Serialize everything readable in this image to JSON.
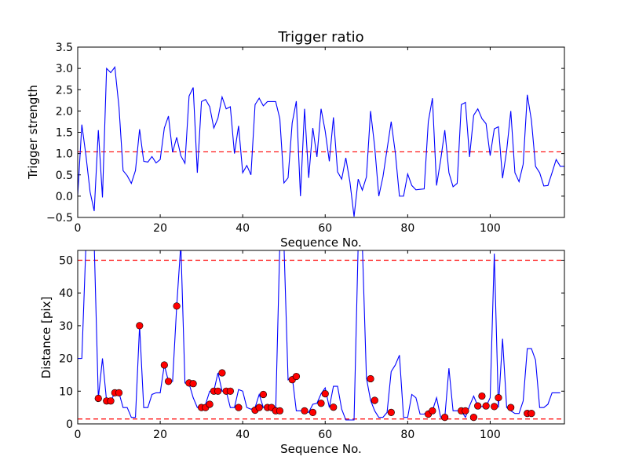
{
  "chart_data": [
    {
      "type": "line",
      "title": "Trigger ratio",
      "xlabel": "Sequence No.",
      "ylabel": "Trigger strength",
      "xlim": [
        0,
        118
      ],
      "ylim": [
        -0.5,
        3.5
      ],
      "xticks": [
        0,
        20,
        40,
        60,
        80,
        100
      ],
      "yticks": [
        -0.5,
        0.0,
        0.5,
        1.0,
        1.5,
        2.0,
        2.5,
        3.0,
        3.5
      ],
      "ytick_labels": [
        "−0.5",
        "0.0",
        "0.5",
        "1.0",
        "1.5",
        "2.0",
        "2.5",
        "3.0",
        "3.5"
      ],
      "grid": false,
      "line_color": "#0000ff",
      "threshold": 1.04,
      "threshold_color": "#ff0000",
      "series": [
        {
          "values": [
            0.02,
            1.68,
            0.95,
            0.1,
            -0.35,
            1.55,
            -0.03,
            3.0,
            2.9,
            3.03,
            2.1,
            0.6,
            0.48,
            0.3,
            0.6,
            1.57,
            0.82,
            0.8,
            0.93,
            0.78,
            0.86,
            1.6,
            1.88,
            1.03,
            1.38,
            0.95,
            0.77,
            2.35,
            2.55,
            0.55,
            2.22,
            2.27,
            2.1,
            1.6,
            1.83,
            2.33,
            2.05,
            2.1,
            1.0,
            1.65,
            0.55,
            0.72,
            0.5,
            2.15,
            2.3,
            2.12,
            2.22,
            2.22,
            2.22,
            1.82,
            0.31,
            0.43,
            1.72,
            2.23,
            0.0,
            2.05,
            0.43,
            1.6,
            0.92,
            2.05,
            1.53,
            0.82,
            1.85,
            0.57,
            0.4,
            0.9,
            0.33,
            -0.48,
            0.4,
            0.14,
            0.45,
            2.0,
            1.16,
            0.0,
            0.45,
            1.1,
            1.75,
            1.02,
            0.0,
            0.0,
            0.52,
            0.25,
            0.15,
            0.16,
            0.17,
            1.75,
            2.3,
            0.25,
            0.85,
            1.55,
            0.55,
            0.22,
            0.3,
            2.15,
            2.2,
            0.92,
            1.9,
            2.05,
            1.82,
            1.7,
            0.95,
            1.58,
            1.63,
            0.42,
            1.07,
            2.0,
            0.55,
            0.34,
            0.75,
            2.38,
            1.78,
            0.7,
            0.55,
            0.24,
            0.25,
            0.55,
            0.86,
            0.7,
            0.7
          ]
        }
      ]
    },
    {
      "type": "line",
      "title": "",
      "xlabel": "Sequence No.",
      "ylabel": "Distance [pix]",
      "xlim": [
        0,
        118
      ],
      "ylim": [
        0,
        53
      ],
      "xticks": [
        0,
        20,
        40,
        60,
        80,
        100
      ],
      "yticks": [
        0,
        10,
        20,
        30,
        40,
        50
      ],
      "grid": false,
      "line_color": "#0000ff",
      "marker_color": "#ff0000",
      "thresholds": [
        50,
        1.5
      ],
      "threshold_color": "#ff0000",
      "series": [
        {
          "values": [
            20,
            20,
            55,
            55,
            55,
            7.8,
            20,
            7,
            7,
            9.5,
            9.5,
            5,
            5,
            2,
            2,
            30,
            5,
            5,
            9,
            9.5,
            9.5,
            18,
            13,
            13,
            36,
            55,
            12.5,
            12.3,
            8,
            5,
            5,
            6,
            10,
            10,
            15.6,
            10,
            10,
            5,
            5,
            10.5,
            10,
            5,
            4.5,
            5,
            9,
            5,
            5,
            4,
            4,
            55,
            55,
            13.5,
            14.5,
            4,
            4,
            4,
            3.5,
            6,
            6.3,
            9.2,
            11,
            5,
            11.5,
            11.5,
            4.5,
            1.2,
            1.2,
            1.2,
            55,
            55,
            14,
            7.2,
            4,
            2,
            2,
            3.5,
            16,
            18,
            21,
            2,
            2,
            9,
            8,
            3,
            3,
            4,
            4,
            8,
            2,
            2,
            17,
            4,
            4,
            4,
            2,
            5.5,
            8.5,
            5.5,
            5.3,
            5.3,
            8,
            52,
            5,
            26,
            5,
            4,
            3.2,
            3.2,
            7,
            23,
            23,
            19.5,
            5,
            5,
            6,
            9.5,
            9.5,
            9.5
          ]
        }
      ],
      "marked_points": [
        [
          5,
          7.8
        ],
        [
          7,
          7
        ],
        [
          8,
          7
        ],
        [
          9,
          9.5
        ],
        [
          10,
          9.5
        ],
        [
          15,
          30
        ],
        [
          21,
          18
        ],
        [
          22,
          13
        ],
        [
          24,
          36
        ],
        [
          27,
          12.5
        ],
        [
          28,
          12.3
        ],
        [
          30,
          5
        ],
        [
          31,
          5
        ],
        [
          32,
          6
        ],
        [
          33,
          10
        ],
        [
          34,
          10
        ],
        [
          35,
          15.6
        ],
        [
          36,
          10
        ],
        [
          37,
          10
        ],
        [
          39,
          5
        ],
        [
          43,
          4.2
        ],
        [
          44,
          5
        ],
        [
          45,
          9
        ],
        [
          46,
          5
        ],
        [
          47,
          5
        ],
        [
          48,
          4
        ],
        [
          49,
          4
        ],
        [
          52,
          13.5
        ],
        [
          53,
          14.5
        ],
        [
          55,
          4
        ],
        [
          57,
          3.5
        ],
        [
          59,
          6.3
        ],
        [
          60,
          9.2
        ],
        [
          62,
          5.1
        ],
        [
          71,
          13.8
        ],
        [
          72,
          7.2
        ],
        [
          76,
          3.5
        ],
        [
          85,
          3
        ],
        [
          86,
          4
        ],
        [
          89,
          2
        ],
        [
          93,
          4
        ],
        [
          94,
          4
        ],
        [
          96,
          2
        ],
        [
          97,
          5.5
        ],
        [
          98,
          8.5
        ],
        [
          99,
          5.5
        ],
        [
          101,
          5.3
        ],
        [
          102,
          8
        ],
        [
          105,
          5
        ],
        [
          109,
          3.2
        ],
        [
          110,
          3.2
        ]
      ]
    }
  ]
}
